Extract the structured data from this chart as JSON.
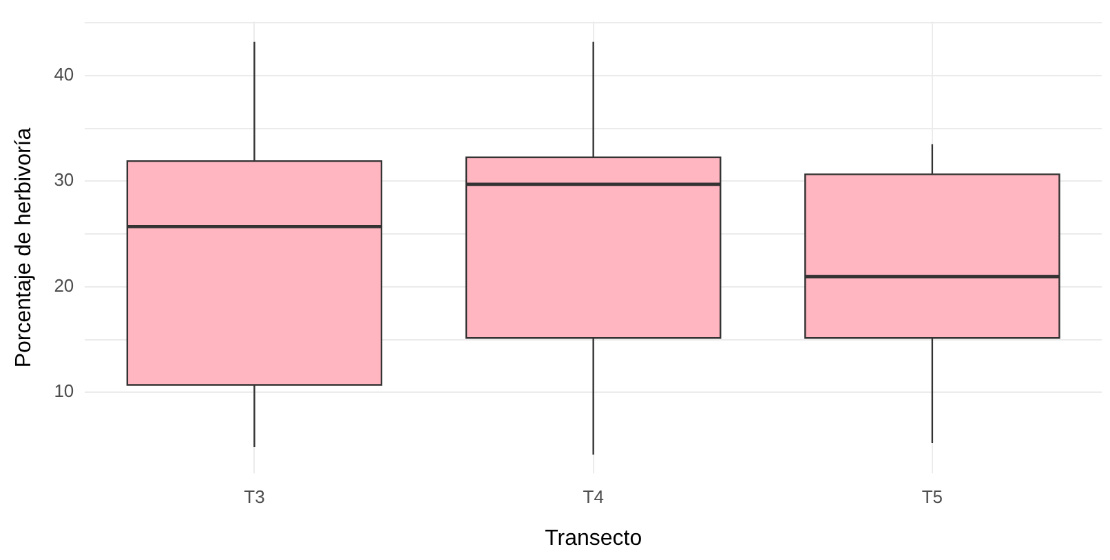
{
  "chart_data": {
    "type": "box",
    "xlabel": "Transecto",
    "ylabel": "Porcentaje de herbivoría",
    "categories": [
      "T3",
      "T4",
      "T5"
    ],
    "color": "#ffb6c1",
    "boxes": [
      {
        "low": 4.8,
        "q1": 10.7,
        "median": 25.7,
        "q3": 31.9,
        "high": 43.2
      },
      {
        "low": 4.1,
        "q1": 15.15,
        "median": 29.7,
        "q3": 32.25,
        "high": 43.2
      },
      {
        "low": 5.2,
        "q1": 15.15,
        "median": 20.95,
        "q3": 30.65,
        "high": 33.5
      }
    ],
    "ylim": [
      2.3,
      45.1
    ],
    "yticks": [
      10,
      {
        "value": 15,
        "label": null
      },
      20,
      {
        "value": 25,
        "label": null
      },
      30,
      {
        "value": 35,
        "label": null
      },
      40,
      {
        "value": 45,
        "label": null
      }
    ],
    "grid": true
  }
}
